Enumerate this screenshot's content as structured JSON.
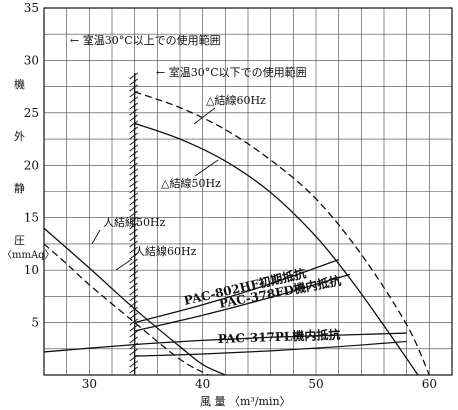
{
  "chart_data": {
    "type": "line",
    "xlabel": "風 量 〈m³/min〉",
    "ylabel_chars": [
      "機",
      "外",
      "静",
      "圧"
    ],
    "ylabel_unit": "〈mmAq〉",
    "xlim": [
      26,
      62
    ],
    "ylim": [
      0,
      35
    ],
    "x_ticks": [
      30,
      40,
      50,
      60
    ],
    "x_tick_labels": [
      "30",
      "40",
      "50",
      "60"
    ],
    "y_ticks": [
      5,
      10,
      15,
      20,
      25,
      30,
      35
    ],
    "y_tick_labels": [
      "5",
      "10",
      "15",
      "20",
      "25",
      "30",
      "35"
    ],
    "grid": true,
    "limit_lines": [
      {
        "label": "室温30°C以上での使用範囲",
        "x": 26
      },
      {
        "label": "室温30°C以下での使用範囲",
        "x": 34
      }
    ],
    "series": [
      {
        "name": "△結線60Hz",
        "style": "dashed",
        "x": [
          34,
          38,
          42,
          46,
          50,
          54,
          58,
          60
        ],
        "y": [
          27,
          25.5,
          23.4,
          20.5,
          16.8,
          11.5,
          4.8,
          0
        ]
      },
      {
        "name": "△結線50Hz",
        "style": "solid",
        "x": [
          34,
          38,
          42,
          46,
          50,
          53,
          56,
          59
        ],
        "y": [
          24,
          22.5,
          20.4,
          17.4,
          13.2,
          9.2,
          4.7,
          0
        ]
      },
      {
        "name": "人結線50Hz",
        "style": "solid",
        "x": [
          26,
          30,
          34,
          38,
          40,
          42
        ],
        "y": [
          14,
          10.2,
          6.3,
          2.7,
          1.0,
          0
        ]
      },
      {
        "name": "人結線60Hz",
        "style": "dashed",
        "x": [
          26,
          28,
          30,
          34,
          38,
          40.5
        ],
        "y": [
          12.5,
          10.6,
          8.6,
          5.0,
          1.5,
          0
        ]
      },
      {
        "name": "PAC-802HF初期抵抗",
        "style": "solid",
        "x": [
          34,
          40,
          46,
          52
        ],
        "y": [
          5.0,
          6.7,
          8.7,
          11.0
        ]
      },
      {
        "name": "PAC-378FD機内抵抗",
        "style": "solid",
        "x": [
          34,
          40,
          46,
          53
        ],
        "y": [
          4.2,
          5.7,
          7.4,
          9.6
        ]
      },
      {
        "name": "PAC-317PL機内抵抗",
        "style": "solid",
        "x": [
          26,
          34,
          40,
          46,
          52,
          58
        ],
        "y": [
          2.2,
          2.9,
          3.3,
          3.6,
          3.8,
          4.0
        ]
      }
    ],
    "inner_curve": {
      "style": "solid",
      "x": [
        34,
        40,
        46,
        52,
        58
      ],
      "y": [
        1.8,
        2.0,
        2.3,
        2.7,
        3.2
      ]
    }
  }
}
